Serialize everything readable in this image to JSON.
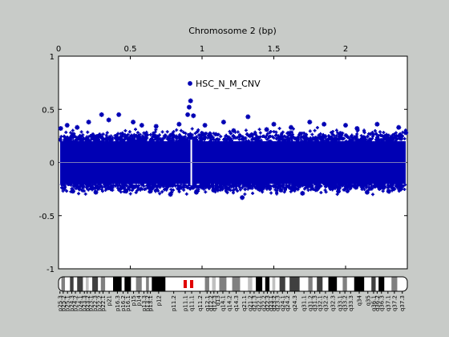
{
  "chart_data": {
    "type": "scatter",
    "title": "Chromosome 2 (bp)",
    "xlabel": "Chromosome 2 (bp)",
    "ylabel": "",
    "xlim": [
      0,
      2.43
    ],
    "ylim": [
      -1,
      1
    ],
    "x_ticks": [
      {
        "value": 0,
        "label": "0"
      },
      {
        "value": 0.5,
        "label": "0.5"
      },
      {
        "value": 1,
        "label": "1"
      },
      {
        "value": 1.5,
        "label": "1.5"
      },
      {
        "value": 2,
        "label": "2"
      }
    ],
    "y_ticks": [
      {
        "value": 1,
        "label": "1"
      },
      {
        "value": 0.5,
        "label": "0.5"
      },
      {
        "value": 0,
        "label": "0"
      },
      {
        "value": -0.5,
        "label": "-0.5"
      },
      {
        "value": -1,
        "label": "-1"
      }
    ],
    "x_axis_position": "top",
    "grid": false,
    "baseline": 0,
    "legend": {
      "position": "top-center",
      "entries": [
        {
          "label": "HSC_N_M_CNV",
          "color": "#0000b4"
        }
      ]
    },
    "series": [
      {
        "name": "HSC_N_M_CNV",
        "color": "#0000b4",
        "marker": "asterisk",
        "band": {
          "core": [
            -0.2,
            0.2
          ],
          "extreme": [
            -0.33,
            0.36
          ]
        },
        "centromere_gap_x": 0.925,
        "outliers": [
          [
            0.015,
            0.32
          ],
          [
            0.06,
            0.35
          ],
          [
            0.1,
            -0.27
          ],
          [
            0.13,
            0.33
          ],
          [
            0.21,
            0.38
          ],
          [
            0.26,
            -0.28
          ],
          [
            0.3,
            0.45
          ],
          [
            0.35,
            0.4
          ],
          [
            0.42,
            0.45
          ],
          [
            0.47,
            -0.27
          ],
          [
            0.52,
            0.38
          ],
          [
            0.58,
            0.35
          ],
          [
            0.64,
            -0.27
          ],
          [
            0.68,
            0.34
          ],
          [
            0.78,
            -0.3
          ],
          [
            0.84,
            0.36
          ],
          [
            0.9,
            0.45
          ],
          [
            0.91,
            0.52
          ],
          [
            0.92,
            0.58
          ],
          [
            0.94,
            0.44
          ],
          [
            0.96,
            -0.28
          ],
          [
            1.02,
            0.35
          ],
          [
            1.08,
            -0.26
          ],
          [
            1.15,
            0.38
          ],
          [
            1.22,
            0.3
          ],
          [
            1.28,
            -0.33
          ],
          [
            1.32,
            0.43
          ],
          [
            1.4,
            -0.25
          ],
          [
            1.45,
            0.31
          ],
          [
            1.5,
            0.36
          ],
          [
            1.55,
            -0.26
          ],
          [
            1.62,
            0.33
          ],
          [
            1.7,
            -0.29
          ],
          [
            1.75,
            0.38
          ],
          [
            1.85,
            0.36
          ],
          [
            1.95,
            -0.27
          ],
          [
            2.0,
            0.35
          ],
          [
            2.08,
            0.32
          ],
          [
            2.15,
            -0.28
          ],
          [
            2.22,
            0.36
          ],
          [
            2.3,
            -0.27
          ],
          [
            2.37,
            0.33
          ],
          [
            2.42,
            0.28
          ]
        ]
      }
    ]
  },
  "ideogram": {
    "centromere_color": "#e00000",
    "bands": [
      {
        "name": "p25.3",
        "start": 0.0,
        "end": 0.02,
        "stain": "gneg"
      },
      {
        "name": "p25.2",
        "start": 0.02,
        "end": 0.045,
        "stain": "gpos50"
      },
      {
        "name": "p25.1",
        "start": 0.045,
        "end": 0.08,
        "stain": "gneg"
      },
      {
        "name": "p24.3",
        "start": 0.08,
        "end": 0.105,
        "stain": "gpos75"
      },
      {
        "name": "p24.2",
        "start": 0.105,
        "end": 0.13,
        "stain": "gneg"
      },
      {
        "name": "p24.1",
        "start": 0.13,
        "end": 0.17,
        "stain": "gpos75"
      },
      {
        "name": "p23.3",
        "start": 0.17,
        "end": 0.19,
        "stain": "gneg"
      },
      {
        "name": "p23.2",
        "start": 0.19,
        "end": 0.21,
        "stain": "gpos25"
      },
      {
        "name": "p23.1",
        "start": 0.21,
        "end": 0.235,
        "stain": "gneg"
      },
      {
        "name": "p22.3",
        "start": 0.235,
        "end": 0.275,
        "stain": "gpos75"
      },
      {
        "name": "p22.2",
        "start": 0.275,
        "end": 0.295,
        "stain": "gneg"
      },
      {
        "name": "p22.1",
        "start": 0.295,
        "end": 0.325,
        "stain": "gpos50"
      },
      {
        "name": "p21",
        "start": 0.325,
        "end": 0.38,
        "stain": "gneg"
      },
      {
        "name": "p16.3",
        "start": 0.38,
        "end": 0.44,
        "stain": "gpos100"
      },
      {
        "name": "p16.2",
        "start": 0.44,
        "end": 0.46,
        "stain": "gneg"
      },
      {
        "name": "p16.1",
        "start": 0.46,
        "end": 0.505,
        "stain": "gpos100"
      },
      {
        "name": "p15",
        "start": 0.505,
        "end": 0.54,
        "stain": "gneg"
      },
      {
        "name": "p14",
        "start": 0.54,
        "end": 0.58,
        "stain": "gpos50"
      },
      {
        "name": "p13.3",
        "start": 0.58,
        "end": 0.61,
        "stain": "gneg"
      },
      {
        "name": "p13.2",
        "start": 0.61,
        "end": 0.63,
        "stain": "gpos50"
      },
      {
        "name": "p13.1",
        "start": 0.63,
        "end": 0.65,
        "stain": "gneg"
      },
      {
        "name": "p12",
        "start": 0.65,
        "end": 0.745,
        "stain": "gpos100"
      },
      {
        "name": "p11.2",
        "start": 0.745,
        "end": 0.86,
        "stain": "gneg"
      },
      {
        "name": "p11.1",
        "start": 0.86,
        "end": 0.905,
        "stain": "acen"
      },
      {
        "name": "q11.1",
        "start": 0.905,
        "end": 0.95,
        "stain": "acen"
      },
      {
        "name": "q11.2",
        "start": 0.95,
        "end": 1.02,
        "stain": "gneg"
      },
      {
        "name": "q12.1",
        "start": 1.02,
        "end": 1.05,
        "stain": "gpos50"
      },
      {
        "name": "q12.2",
        "start": 1.05,
        "end": 1.07,
        "stain": "gneg"
      },
      {
        "name": "q12.3",
        "start": 1.07,
        "end": 1.095,
        "stain": "gpos25"
      },
      {
        "name": "q13",
        "start": 1.095,
        "end": 1.12,
        "stain": "gneg"
      },
      {
        "name": "q14.1",
        "start": 1.12,
        "end": 1.17,
        "stain": "gpos50"
      },
      {
        "name": "q14.2",
        "start": 1.17,
        "end": 1.21,
        "stain": "gneg"
      },
      {
        "name": "q14.3",
        "start": 1.21,
        "end": 1.265,
        "stain": "gpos50"
      },
      {
        "name": "q21.1",
        "start": 1.265,
        "end": 1.32,
        "stain": "gneg"
      },
      {
        "name": "q21.2",
        "start": 1.32,
        "end": 1.35,
        "stain": "gpos25"
      },
      {
        "name": "q21.3",
        "start": 1.35,
        "end": 1.375,
        "stain": "gneg"
      },
      {
        "name": "q22.1",
        "start": 1.375,
        "end": 1.42,
        "stain": "gpos100"
      },
      {
        "name": "q22.2",
        "start": 1.42,
        "end": 1.44,
        "stain": "gneg"
      },
      {
        "name": "q22.3",
        "start": 1.44,
        "end": 1.47,
        "stain": "gpos100"
      },
      {
        "name": "q23.1",
        "start": 1.47,
        "end": 1.49,
        "stain": "gneg"
      },
      {
        "name": "q23.2",
        "start": 1.49,
        "end": 1.51,
        "stain": "gpos25"
      },
      {
        "name": "q23.3",
        "start": 1.51,
        "end": 1.54,
        "stain": "gneg"
      },
      {
        "name": "q24.1",
        "start": 1.54,
        "end": 1.58,
        "stain": "gpos75"
      },
      {
        "name": "q24.2",
        "start": 1.58,
        "end": 1.61,
        "stain": "gneg"
      },
      {
        "name": "q24.3",
        "start": 1.61,
        "end": 1.68,
        "stain": "gpos75"
      },
      {
        "name": "q31.1",
        "start": 1.68,
        "end": 1.74,
        "stain": "gneg"
      },
      {
        "name": "q31.2",
        "start": 1.74,
        "end": 1.77,
        "stain": "gpos50"
      },
      {
        "name": "q31.3",
        "start": 1.77,
        "end": 1.8,
        "stain": "gneg"
      },
      {
        "name": "q32.1",
        "start": 1.8,
        "end": 1.84,
        "stain": "gpos75"
      },
      {
        "name": "q32.2",
        "start": 1.84,
        "end": 1.88,
        "stain": "gneg"
      },
      {
        "name": "q32.3",
        "start": 1.88,
        "end": 1.94,
        "stain": "gpos100"
      },
      {
        "name": "q33.1",
        "start": 1.94,
        "end": 1.98,
        "stain": "gneg"
      },
      {
        "name": "q33.2",
        "start": 1.98,
        "end": 2.01,
        "stain": "gpos50"
      },
      {
        "name": "q33.3",
        "start": 2.01,
        "end": 2.06,
        "stain": "gneg"
      },
      {
        "name": "q34",
        "start": 2.06,
        "end": 2.13,
        "stain": "gpos100"
      },
      {
        "name": "q35",
        "start": 2.13,
        "end": 2.18,
        "stain": "gneg"
      },
      {
        "name": "q36.1",
        "start": 2.18,
        "end": 2.21,
        "stain": "gpos75"
      },
      {
        "name": "q36.2",
        "start": 2.21,
        "end": 2.23,
        "stain": "gneg"
      },
      {
        "name": "q36.3",
        "start": 2.23,
        "end": 2.27,
        "stain": "gpos100"
      },
      {
        "name": "q37.1",
        "start": 2.27,
        "end": 2.32,
        "stain": "gneg"
      },
      {
        "name": "q37.2",
        "start": 2.32,
        "end": 2.36,
        "stain": "gpos50"
      },
      {
        "name": "q37.3",
        "start": 2.36,
        "end": 2.43,
        "stain": "gneg"
      }
    ]
  }
}
